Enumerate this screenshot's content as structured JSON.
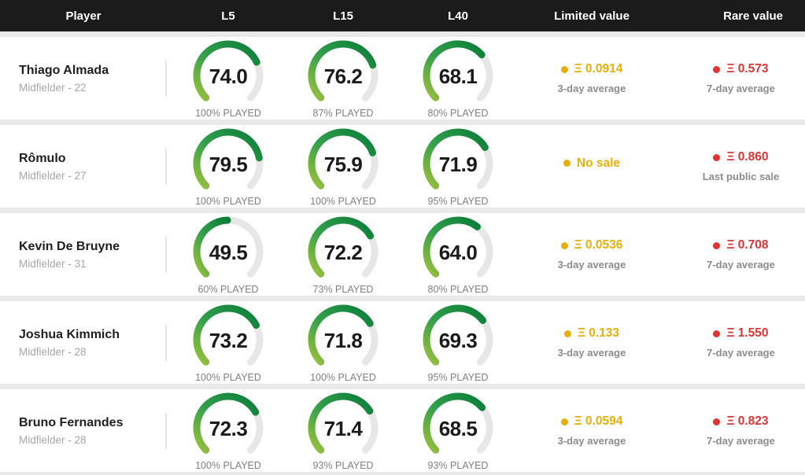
{
  "header": {
    "player": "Player",
    "l5": "L5",
    "l15": "L15",
    "l40": "L40",
    "limited": "Limited value",
    "rare": "Rare value"
  },
  "colors": {
    "header_bg": "#1b1b1b",
    "gold": "#e8ae0a",
    "red": "#dd3434",
    "gauge_track": "#e7e7e7",
    "gauge_gradient": [
      "#9cc13c",
      "#33a04b",
      "#0b7d38"
    ]
  },
  "players": [
    {
      "name": "Thiago Almada",
      "position": "Midfielder - 22",
      "gauges": [
        {
          "value": 74.0,
          "score": "74.0",
          "played": "100% PLAYED"
        },
        {
          "value": 76.2,
          "score": "76.2",
          "played": "87% PLAYED"
        },
        {
          "value": 68.1,
          "score": "68.1",
          "played": "80% PLAYED"
        }
      ],
      "limited": {
        "value": "Ξ 0.0914",
        "subtitle": "3-day average"
      },
      "rare": {
        "value": "Ξ 0.573",
        "subtitle": "7-day average"
      }
    },
    {
      "name": "Rômulo",
      "position": "Midfielder - 27",
      "gauges": [
        {
          "value": 79.5,
          "score": "79.5",
          "played": "100% PLAYED"
        },
        {
          "value": 75.9,
          "score": "75.9",
          "played": "100% PLAYED"
        },
        {
          "value": 71.9,
          "score": "71.9",
          "played": "95% PLAYED"
        }
      ],
      "limited": {
        "value": "No sale",
        "subtitle": ""
      },
      "rare": {
        "value": "Ξ 0.860",
        "subtitle": "Last public sale"
      }
    },
    {
      "name": "Kevin De Bruyne",
      "position": "Midfielder - 31",
      "gauges": [
        {
          "value": 49.5,
          "score": "49.5",
          "played": "60% PLAYED"
        },
        {
          "value": 72.2,
          "score": "72.2",
          "played": "73% PLAYED"
        },
        {
          "value": 64.0,
          "score": "64.0",
          "played": "80% PLAYED"
        }
      ],
      "limited": {
        "value": "Ξ 0.0536",
        "subtitle": "3-day average"
      },
      "rare": {
        "value": "Ξ 0.708",
        "subtitle": "7-day average"
      }
    },
    {
      "name": "Joshua Kimmich",
      "position": "Midfielder - 28",
      "gauges": [
        {
          "value": 73.2,
          "score": "73.2",
          "played": "100% PLAYED"
        },
        {
          "value": 71.8,
          "score": "71.8",
          "played": "100% PLAYED"
        },
        {
          "value": 69.3,
          "score": "69.3",
          "played": "95% PLAYED"
        }
      ],
      "limited": {
        "value": "Ξ 0.133",
        "subtitle": "3-day average"
      },
      "rare": {
        "value": "Ξ 1.550",
        "subtitle": "7-day average"
      }
    },
    {
      "name": "Bruno Fernandes",
      "position": "Midfielder - 28",
      "gauges": [
        {
          "value": 72.3,
          "score": "72.3",
          "played": "100% PLAYED"
        },
        {
          "value": 71.4,
          "score": "71.4",
          "played": "93% PLAYED"
        },
        {
          "value": 68.5,
          "score": "68.5",
          "played": "93% PLAYED"
        }
      ],
      "limited": {
        "value": "Ξ 0.0594",
        "subtitle": "3-day average"
      },
      "rare": {
        "value": "Ξ 0.823",
        "subtitle": "7-day average"
      }
    }
  ],
  "chart_data": {
    "type": "table",
    "columns": [
      "Player",
      "L5",
      "L15",
      "L40",
      "Limited value",
      "Rare value"
    ],
    "gauge": {
      "type": "radial-gauge",
      "range": [
        0,
        100
      ],
      "arc_degrees": 270
    },
    "rows": [
      [
        "Thiago Almada — Midfielder - 22",
        "74.0 / 100% played",
        "76.2 / 87% played",
        "68.1 / 80% played",
        "Ξ 0.0914 (3-day average)",
        "Ξ 0.573 (7-day average)"
      ],
      [
        "Rômulo — Midfielder - 27",
        "79.5 / 100% played",
        "75.9 / 100% played",
        "71.9 / 95% played",
        "No sale",
        "Ξ 0.860 (Last public sale)"
      ],
      [
        "Kevin De Bruyne — Midfielder - 31",
        "49.5 / 60% played",
        "72.2 / 73% played",
        "64.0 / 80% played",
        "Ξ 0.0536 (3-day average)",
        "Ξ 0.708 (7-day average)"
      ],
      [
        "Joshua Kimmich — Midfielder - 28",
        "73.2 / 100% played",
        "71.8 / 100% played",
        "69.3 / 95% played",
        "Ξ 0.133 (3-day average)",
        "Ξ 1.550 (7-day average)"
      ],
      [
        "Bruno Fernandes — Midfielder - 28",
        "72.3 / 100% played",
        "71.4 / 93% played",
        "68.5 / 93% played",
        "Ξ 0.0594 (3-day average)",
        "Ξ 0.823 (7-day average)"
      ]
    ]
  }
}
